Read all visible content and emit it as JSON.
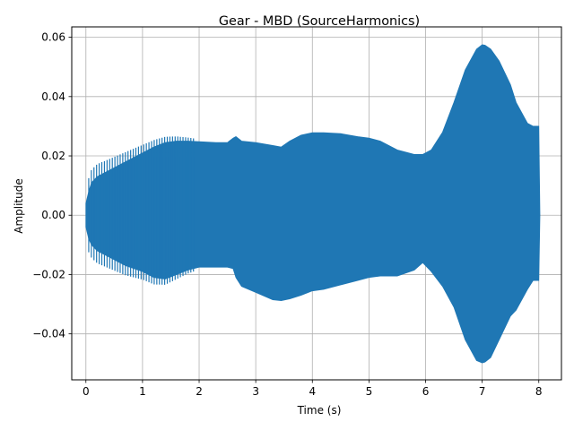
{
  "chart_data": {
    "type": "area",
    "title": "Gear - MBD (SourceHarmonics)",
    "xlabel": "Time (s)",
    "ylabel": "Amplitude",
    "xlim": [
      -0.25,
      8.4
    ],
    "ylim": [
      -0.0555,
      0.0635
    ],
    "xticks": [
      0,
      1,
      2,
      3,
      4,
      5,
      6,
      7,
      8
    ],
    "yticks": [
      -0.04,
      -0.02,
      0.0,
      0.02,
      0.04,
      0.06
    ],
    "xtick_labels": [
      "0",
      "1",
      "2",
      "3",
      "4",
      "5",
      "6",
      "7",
      "8"
    ],
    "ytick_labels": [
      "−0.04",
      "−0.02",
      "0.00",
      "0.02",
      "0.04",
      "0.06"
    ],
    "grid": true,
    "series": [
      {
        "color": "#1f77b4",
        "envelope": {
          "t": [
            0.0,
            0.05,
            0.1,
            0.2,
            0.3,
            0.5,
            0.7,
            1.0,
            1.2,
            1.4,
            1.6,
            1.8,
            2.0,
            2.3,
            2.5,
            2.6,
            2.65,
            2.75,
            3.0,
            3.3,
            3.45,
            3.6,
            3.8,
            4.0,
            4.2,
            4.5,
            4.8,
            5.0,
            5.2,
            5.5,
            5.8,
            5.95,
            6.1,
            6.3,
            6.5,
            6.7,
            6.9,
            7.0,
            7.05,
            7.15,
            7.3,
            7.5,
            7.6,
            7.8,
            7.9,
            8.0,
            8.02
          ],
          "upper": [
            0.004,
            0.008,
            0.011,
            0.013,
            0.014,
            0.016,
            0.018,
            0.021,
            0.023,
            0.0245,
            0.025,
            0.025,
            0.0248,
            0.0245,
            0.0245,
            0.026,
            0.0265,
            0.025,
            0.0245,
            0.0235,
            0.023,
            0.025,
            0.027,
            0.0278,
            0.0278,
            0.0275,
            0.0265,
            0.026,
            0.025,
            0.022,
            0.0205,
            0.0205,
            0.022,
            0.028,
            0.038,
            0.049,
            0.056,
            0.0575,
            0.0573,
            0.056,
            0.052,
            0.044,
            0.038,
            0.031,
            0.03,
            0.03,
            0.0
          ],
          "lower": [
            -0.004,
            -0.008,
            -0.01,
            -0.012,
            -0.013,
            -0.015,
            -0.017,
            -0.019,
            -0.021,
            -0.0215,
            -0.02,
            -0.0185,
            -0.0175,
            -0.0175,
            -0.0175,
            -0.018,
            -0.021,
            -0.024,
            -0.026,
            -0.0285,
            -0.0288,
            -0.0282,
            -0.027,
            -0.0255,
            -0.025,
            -0.0235,
            -0.022,
            -0.021,
            -0.0205,
            -0.0205,
            -0.0185,
            -0.016,
            -0.019,
            -0.024,
            -0.031,
            -0.042,
            -0.049,
            -0.0498,
            -0.0495,
            -0.048,
            -0.042,
            -0.034,
            -0.032,
            -0.025,
            -0.022,
            -0.022,
            0.0
          ]
        }
      }
    ]
  }
}
